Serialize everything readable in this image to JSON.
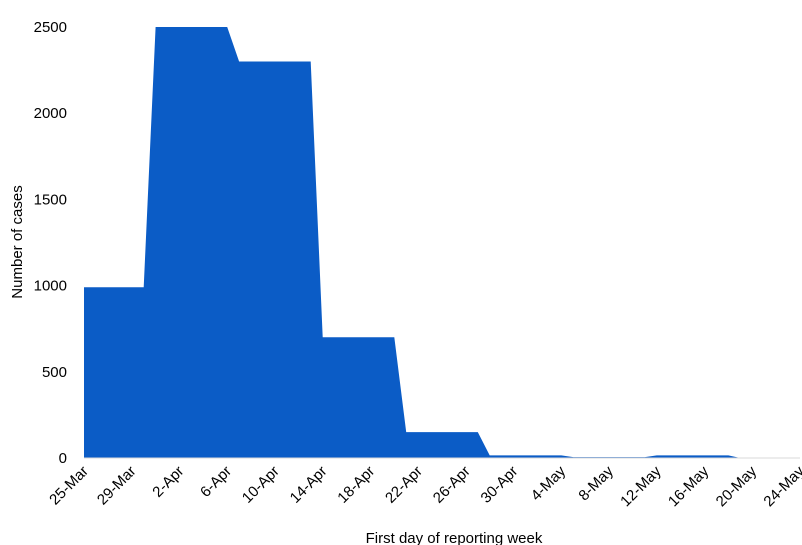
{
  "chart_data": {
    "type": "area",
    "title": "",
    "xlabel": "First day of reporting week",
    "ylabel": "Number of cases",
    "ylim": [
      0,
      2500
    ],
    "yticks": [
      "0",
      "500",
      "1000",
      "1500",
      "2000",
      "2500"
    ],
    "grid": false,
    "legend": "none",
    "categories": [
      "25-Mar",
      "29-Mar",
      "2-Apr",
      "6-Apr",
      "10-Apr",
      "14-Apr",
      "18-Apr",
      "22-Apr",
      "26-Apr",
      "30-Apr",
      "4-May",
      "8-May",
      "12-May",
      "16-May",
      "20-May",
      "24-May"
    ],
    "series": [
      {
        "color": "#0b5cc6",
        "points": [
          {
            "x": "25-Mar",
            "y": 990
          },
          {
            "x": "29-Mar",
            "y": 990
          },
          {
            "x": "30-Mar",
            "y": 990
          },
          {
            "x": "31-Mar",
            "y": 2500
          },
          {
            "x": "6-Apr",
            "y": 2500
          },
          {
            "x": "7-Apr",
            "y": 2300
          },
          {
            "x": "13-Apr",
            "y": 2300
          },
          {
            "x": "14-Apr",
            "y": 700
          },
          {
            "x": "20-Apr",
            "y": 700
          },
          {
            "x": "21-Apr",
            "y": 150
          },
          {
            "x": "27-Apr",
            "y": 150
          },
          {
            "x": "28-Apr",
            "y": 15
          },
          {
            "x": "4-May",
            "y": 15
          },
          {
            "x": "5-May",
            "y": 5
          },
          {
            "x": "11-May",
            "y": 5
          },
          {
            "x": "12-May",
            "y": 15
          },
          {
            "x": "18-May",
            "y": 15
          },
          {
            "x": "19-May",
            "y": 0
          },
          {
            "x": "24-May",
            "y": 0
          }
        ]
      }
    ]
  }
}
